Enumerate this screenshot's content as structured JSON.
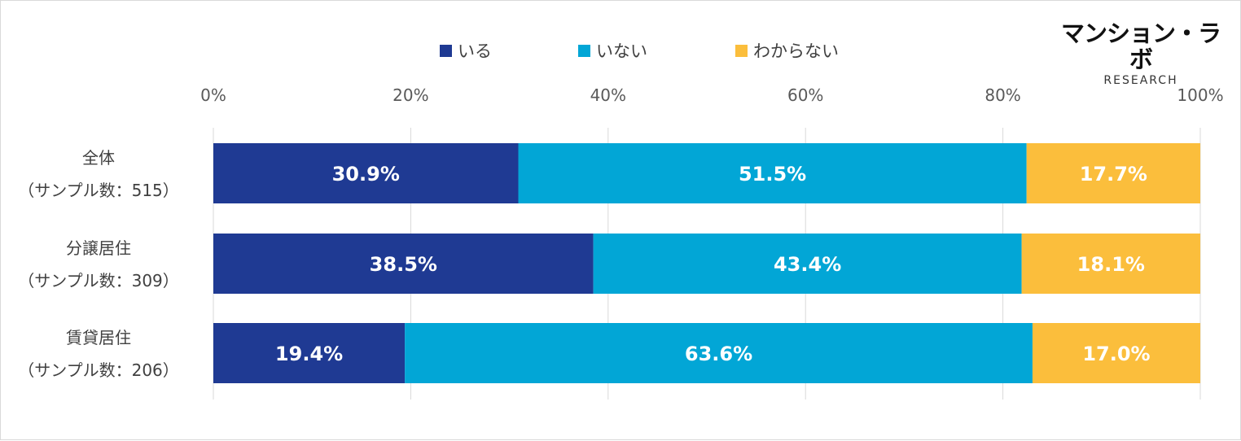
{
  "logo": {
    "main": "マンション・ラボ",
    "sub": "RESEARCH"
  },
  "colors": {
    "iru": "#1f3a93",
    "inai": "#02a6d6",
    "wakaranai": "#fbbe3c"
  },
  "chart_data": {
    "type": "bar",
    "orientation": "horizontal",
    "stacked": true,
    "percent": true,
    "title": "",
    "xlabel": "",
    "ylabel": "",
    "xlim": [
      0,
      100
    ],
    "ticks": [
      "0%",
      "20%",
      "40%",
      "60%",
      "80%",
      "100%"
    ],
    "tick_values": [
      0,
      20,
      40,
      60,
      80,
      100
    ],
    "gridlines": true,
    "legend_position": "top",
    "categories": [
      {
        "label": "全体",
        "sample": "（サンプル数：515）"
      },
      {
        "label": "分譲居住",
        "sample": "（サンプル数：309）"
      },
      {
        "label": "賃貸居住",
        "sample": "（サンプル数：206）"
      }
    ],
    "series": [
      {
        "name": "いる",
        "color": "#1f3a93",
        "values": [
          30.9,
          38.5,
          19.4
        ],
        "labels": [
          "30.9%",
          "38.5%",
          "19.4%"
        ]
      },
      {
        "name": "いない",
        "color": "#02a6d6",
        "values": [
          51.5,
          43.4,
          63.6
        ],
        "labels": [
          "51.5%",
          "43.4%",
          "63.6%"
        ]
      },
      {
        "name": "わからない",
        "color": "#fbbe3c",
        "values": [
          17.7,
          18.1,
          17.0
        ],
        "labels": [
          "17.7%",
          "18.1%",
          "17.0%"
        ]
      }
    ]
  }
}
